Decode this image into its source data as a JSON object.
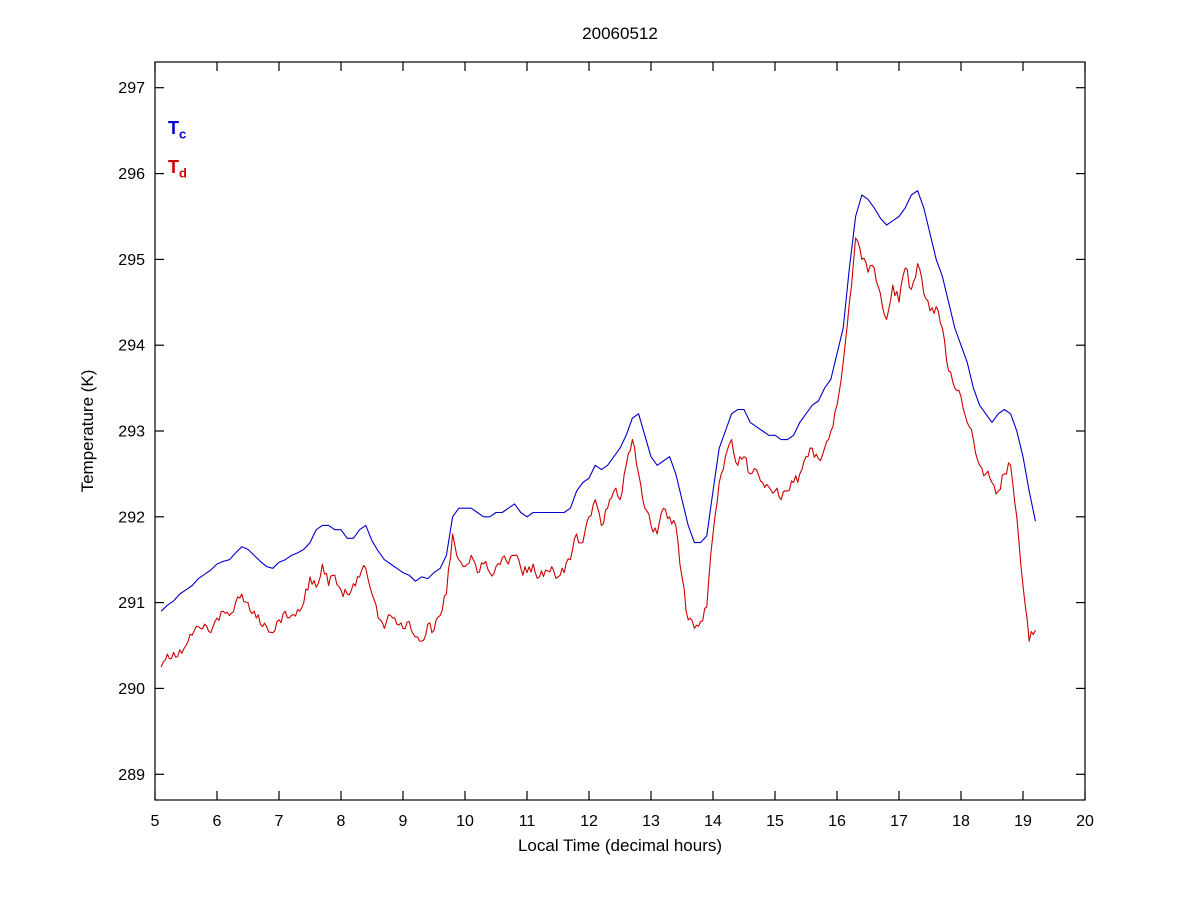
{
  "chart_data": {
    "type": "line",
    "title": "20060512",
    "xlabel": "Local Time (decimal hours)",
    "ylabel": "Temperature (K)",
    "xlim": [
      5,
      20
    ],
    "ylim": [
      288.7,
      297.3
    ],
    "xticks": [
      5,
      6,
      7,
      8,
      9,
      10,
      11,
      12,
      13,
      14,
      15,
      16,
      17,
      18,
      19,
      20
    ],
    "yticks": [
      289,
      290,
      291,
      292,
      293,
      294,
      295,
      296,
      297
    ],
    "grid": false,
    "background": "#ffffff",
    "axes_color": "#000000",
    "legend_position": "inside-top-left",
    "legend": [
      {
        "text": "T",
        "sub": "c",
        "color": "#0000cd"
      },
      {
        "text": "T",
        "sub": "d",
        "color": "#cd0000"
      }
    ],
    "series": [
      {
        "name": "tc",
        "color": "#0000cd",
        "x_start": 5.1,
        "x_step": 0.1,
        "values": [
          290.9,
          290.97,
          291.02,
          291.1,
          291.15,
          291.2,
          291.28,
          291.33,
          291.38,
          291.45,
          291.48,
          291.5,
          291.58,
          291.65,
          291.62,
          291.55,
          291.48,
          291.42,
          291.4,
          291.47,
          291.5,
          291.55,
          291.58,
          291.62,
          291.7,
          291.85,
          291.9,
          291.9,
          291.85,
          291.85,
          291.75,
          291.75,
          291.85,
          291.9,
          291.72,
          291.6,
          291.5,
          291.45,
          291.4,
          291.35,
          291.32,
          291.25,
          291.3,
          291.28,
          291.35,
          291.4,
          291.55,
          292.0,
          292.1,
          292.1,
          292.1,
          292.05,
          292.0,
          292.0,
          292.05,
          292.05,
          292.1,
          292.15,
          292.05,
          292.0,
          292.05,
          292.05,
          292.05,
          292.05,
          292.05,
          292.05,
          292.1,
          292.3,
          292.4,
          292.45,
          292.6,
          292.55,
          292.6,
          292.7,
          292.8,
          292.95,
          293.15,
          293.2,
          292.95,
          292.7,
          292.6,
          292.65,
          292.7,
          292.5,
          292.2,
          291.9,
          291.7,
          291.7,
          291.78,
          292.3,
          292.8,
          293.0,
          293.2,
          293.25,
          293.25,
          293.1,
          293.05,
          293.0,
          292.95,
          292.95,
          292.9,
          292.9,
          292.95,
          293.1,
          293.2,
          293.3,
          293.35,
          293.5,
          293.6,
          293.9,
          294.2,
          294.9,
          295.5,
          295.75,
          295.7,
          295.6,
          295.48,
          295.4,
          295.45,
          295.5,
          295.6,
          295.75,
          295.8,
          295.6,
          295.3,
          295.0,
          294.8,
          294.5,
          294.2,
          294.0,
          293.8,
          293.5,
          293.3,
          293.2,
          293.1,
          293.2,
          293.25,
          293.2,
          293.0,
          292.7,
          292.3,
          291.95
        ]
      },
      {
        "name": "td",
        "color": "#cd0000",
        "x_start": 5.1,
        "x_step": 0.1,
        "noise": {
          "subdivide": 3,
          "amplitude": 0.07,
          "seed": 13
        },
        "values": [
          290.25,
          290.4,
          290.42,
          290.45,
          290.5,
          290.62,
          290.72,
          290.75,
          290.65,
          290.82,
          290.9,
          290.85,
          291.0,
          291.1,
          291.0,
          290.9,
          290.75,
          290.72,
          290.65,
          290.8,
          290.9,
          290.85,
          290.92,
          291.0,
          291.3,
          291.18,
          291.45,
          291.2,
          291.32,
          291.15,
          291.1,
          291.22,
          291.3,
          291.4,
          291.1,
          290.82,
          290.7,
          290.85,
          290.75,
          290.7,
          290.78,
          290.6,
          290.55,
          290.75,
          290.68,
          290.85,
          291.1,
          291.8,
          291.5,
          291.42,
          291.55,
          291.35,
          291.45,
          291.35,
          291.42,
          291.52,
          291.45,
          291.55,
          291.4,
          291.35,
          291.45,
          291.3,
          291.38,
          291.42,
          291.3,
          291.35,
          291.5,
          291.8,
          291.7,
          292.0,
          292.2,
          291.9,
          292.1,
          292.3,
          292.2,
          292.6,
          292.9,
          292.5,
          292.1,
          291.9,
          291.8,
          292.1,
          292.0,
          291.9,
          291.3,
          290.8,
          290.7,
          290.78,
          290.95,
          291.8,
          292.4,
          292.7,
          292.9,
          292.6,
          292.7,
          292.5,
          292.55,
          292.4,
          292.35,
          292.3,
          292.2,
          292.3,
          292.4,
          292.5,
          292.7,
          292.8,
          292.68,
          292.8,
          293.0,
          293.3,
          293.8,
          294.5,
          295.25,
          295.0,
          294.85,
          294.9,
          294.6,
          294.3,
          294.7,
          294.5,
          294.9,
          294.65,
          294.95,
          294.6,
          294.4,
          294.45,
          294.2,
          293.7,
          293.5,
          293.4,
          293.1,
          292.9,
          292.6,
          292.5,
          292.4,
          292.3,
          292.5,
          292.6,
          292.0,
          291.2,
          290.55,
          290.68
        ]
      }
    ]
  }
}
